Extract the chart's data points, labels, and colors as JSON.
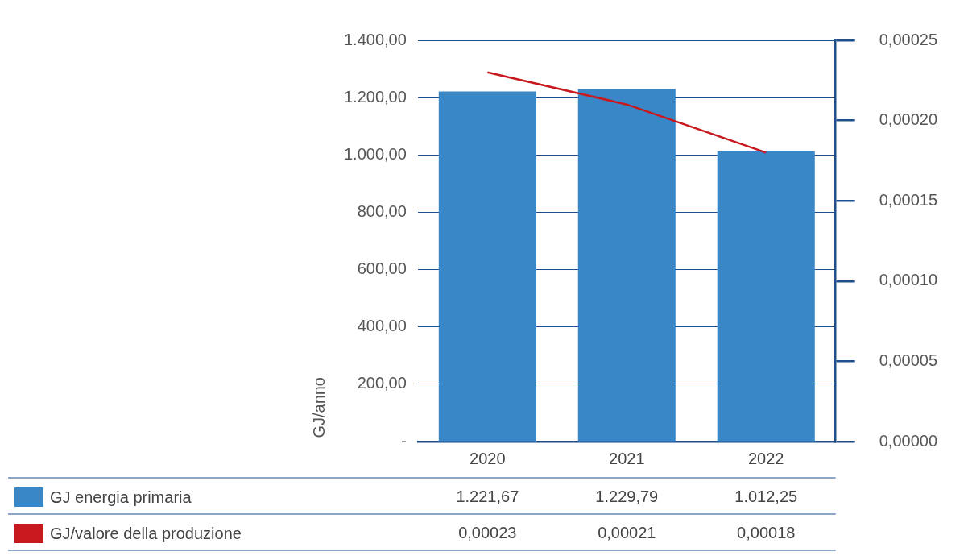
{
  "chart_data": {
    "type": "bar",
    "categories": [
      "2020",
      "2021",
      "2022"
    ],
    "ylabel": "GJ/anno",
    "ylim": [
      0,
      1400
    ],
    "yticks": [
      {
        "value": 0,
        "label": "-"
      },
      {
        "value": 200,
        "label": "200,00"
      },
      {
        "value": 400,
        "label": "400,00"
      },
      {
        "value": 600,
        "label": "600,00"
      },
      {
        "value": 800,
        "label": "800,00"
      },
      {
        "value": 1000,
        "label": "1.000,00"
      },
      {
        "value": 1200,
        "label": "1.200,00"
      },
      {
        "value": 1400,
        "label": "1.400,00"
      }
    ],
    "y2lim": [
      0,
      0.00025
    ],
    "y2ticks": [
      {
        "value": 0,
        "label": "0,00000"
      },
      {
        "value": 5e-05,
        "label": "0,00005"
      },
      {
        "value": 0.0001,
        "label": "0,00010"
      },
      {
        "value": 0.00015,
        "label": "0,00015"
      },
      {
        "value": 0.0002,
        "label": "0,00020"
      },
      {
        "value": 0.00025,
        "label": "0,00025"
      }
    ],
    "grid": "y",
    "legend": "bottom",
    "marker": "none",
    "series": [
      {
        "name": "GJ energia primaria",
        "color": "#3a87c8",
        "values": [
          1221.67,
          1229.79,
          1012.25
        ],
        "value_labels": [
          "1.221,67",
          "1.229,79",
          "1.012,25"
        ]
      },
      {
        "name": "GJ/valore della produzione",
        "type": "line",
        "axis": "y2",
        "color": "#c8191e",
        "values": [
          0.00023,
          0.00021,
          0.00018
        ],
        "value_labels": [
          "0,00023",
          "0,00021",
          "0,00018"
        ]
      }
    ]
  }
}
